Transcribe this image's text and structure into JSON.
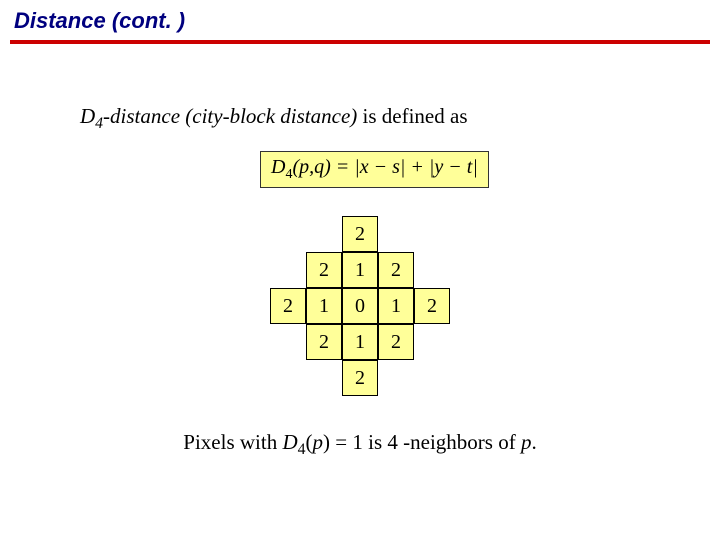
{
  "title": "Distance (cont. )",
  "definition": {
    "prefix_sym": "D",
    "prefix_sub": "4",
    "suffix_italic": "-distance (city-block distance)",
    "suffix_plain": " is defined as"
  },
  "formula_text": "D₄(p,q) = |x − s| + |y − t|",
  "formula_box": {
    "bg": "#ffff99",
    "border": "#333333"
  },
  "grid": {
    "cell_size": 36,
    "cell_bg": "#ffff99",
    "cell_border": "#000000",
    "cells": [
      {
        "r": 0,
        "c": 2,
        "v": "2"
      },
      {
        "r": 1,
        "c": 1,
        "v": "2"
      },
      {
        "r": 1,
        "c": 2,
        "v": "1"
      },
      {
        "r": 1,
        "c": 3,
        "v": "2"
      },
      {
        "r": 2,
        "c": 0,
        "v": "2"
      },
      {
        "r": 2,
        "c": 1,
        "v": "1"
      },
      {
        "r": 2,
        "c": 2,
        "v": "0"
      },
      {
        "r": 2,
        "c": 3,
        "v": "1"
      },
      {
        "r": 2,
        "c": 4,
        "v": "2"
      },
      {
        "r": 3,
        "c": 1,
        "v": "2"
      },
      {
        "r": 3,
        "c": 2,
        "v": "1"
      },
      {
        "r": 3,
        "c": 3,
        "v": "2"
      },
      {
        "r": 4,
        "c": 2,
        "v": "2"
      }
    ]
  },
  "footer": {
    "part1": "Pixels with ",
    "sym": "D",
    "sub": "4",
    "part2": "(",
    "p": "p",
    "part3": ") = 1 is 4 -neighbors of ",
    "p2": "p",
    "part4": "."
  },
  "colors": {
    "title": "#00007f",
    "rule": "#cc0000"
  }
}
